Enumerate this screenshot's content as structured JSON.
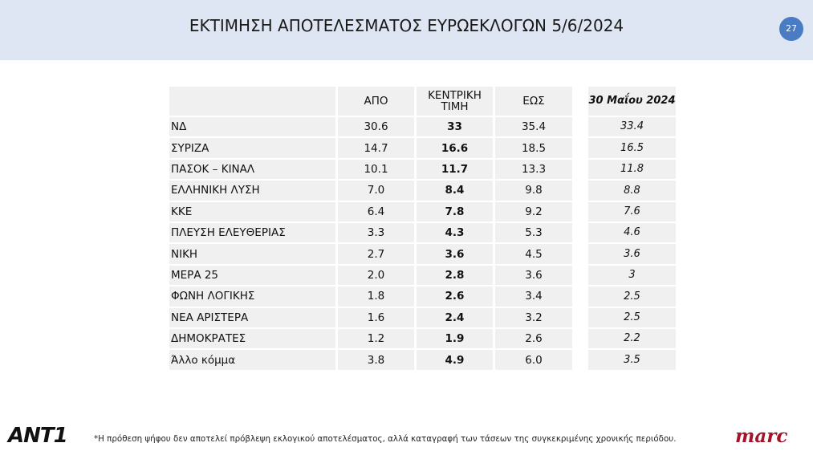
{
  "header": {
    "title": "ΕΚΤΙΜΗΣΗ ΑΠΟΤΕΛΕΣΜΑΤΟΣ ΕΥΡΩΕΚΛΟΓΩΝ 5/6/2024",
    "page_number": "27"
  },
  "table": {
    "columns": [
      "ΑΠΟ",
      "ΚΕΝΤΡΙΚΗ ΤΙΜΗ",
      "ΕΩΣ"
    ],
    "rows": [
      [
        "ΝΔ",
        "30.6",
        "33",
        "35.4"
      ],
      [
        "ΣΥΡΙΖΑ",
        "14.7",
        "16.6",
        "18.5"
      ],
      [
        "ΠΑΣΟΚ – ΚΙΝΑΛ",
        "10.1",
        "11.7",
        "13.3"
      ],
      [
        "ΕΛΛΗΝΙΚΗ ΛΥΣΗ",
        "7.0",
        "8.4",
        "9.8"
      ],
      [
        "ΚΚΕ",
        "6.4",
        "7.8",
        "9.2"
      ],
      [
        "ΠΛΕΥΣΗ ΕΛΕΥΘΕΡΙΑΣ",
        "3.3",
        "4.3",
        "5.3"
      ],
      [
        "ΝΙΚΗ",
        "2.7",
        "3.6",
        "4.5"
      ],
      [
        "ΜΕΡΑ 25",
        "2.0",
        "2.8",
        "3.6"
      ],
      [
        "ΦΩΝΗ ΛΟΓΙΚΗΣ",
        "1.8",
        "2.6",
        "3.4"
      ],
      [
        "ΝΕΑ ΑΡΙΣΤΕΡΑ",
        "1.6",
        "2.4",
        "3.2"
      ],
      [
        "ΔΗΜΟΚΡΑΤΕΣ",
        "1.2",
        "1.9",
        "2.6"
      ],
      [
        "Άλλο κόμμα",
        "3.8",
        "4.9",
        "6.0"
      ]
    ]
  },
  "comparison": {
    "title": "30 Μαΐου 2024",
    "values": [
      "33.4",
      "16.5",
      "11.8",
      "8.8",
      "7.6",
      "4.6",
      "3.6",
      "3",
      "2.5",
      "2.5",
      "2.2",
      "3.5"
    ]
  },
  "footer": {
    "note": "*Η πρόθεση ψήφου δεν αποτελεί πρόβλεψη εκλογικού αποτελέσματος, αλλά καταγραφή των τάσεων της συγκεκριμένης χρονικής περιόδου.",
    "left_logo": "ANT1",
    "right_logo": "marc"
  }
}
